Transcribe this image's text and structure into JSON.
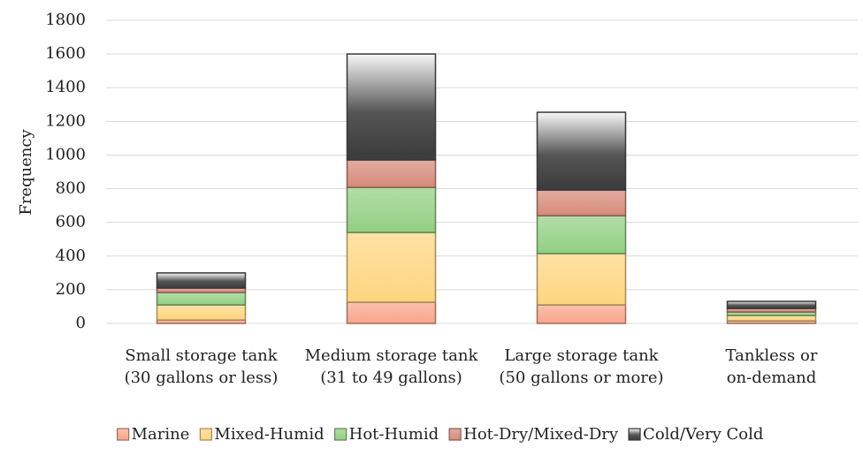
{
  "chart_data": {
    "type": "stacked_bar",
    "y_label": "Frequency",
    "categories": [
      "Small storage tank (30 gallons or less)",
      "Medium storage tank (31 to 49 gallons)",
      "Large storage tank (50 gallons or more)",
      "Tankless or on-demand"
    ],
    "series": [
      {
        "name": "Marine",
        "color": "#f8a58a",
        "values": [
          20,
          126,
          110,
          15
        ]
      },
      {
        "name": "Mixed-Humid",
        "color": "#fdd57e",
        "values": [
          90,
          414,
          305,
          32
        ]
      },
      {
        "name": "Hot-Humid",
        "color": "#92cf82",
        "values": [
          74,
          268,
          225,
          21
        ]
      },
      {
        "name": "Hot-Dry/Mixed-Dry",
        "color": "#d58a78",
        "values": [
          26,
          163,
          152,
          21
        ]
      },
      {
        "name": "Cold/Very Cold",
        "color": "#555555",
        "values": [
          90,
          629,
          462,
          42
        ]
      }
    ],
    "ylim": [
      0,
      1800
    ],
    "yticks": [
      0,
      200,
      400,
      600,
      800,
      1000,
      1200,
      1400,
      1600,
      1800
    ],
    "grid": true,
    "legend": "bottom"
  }
}
